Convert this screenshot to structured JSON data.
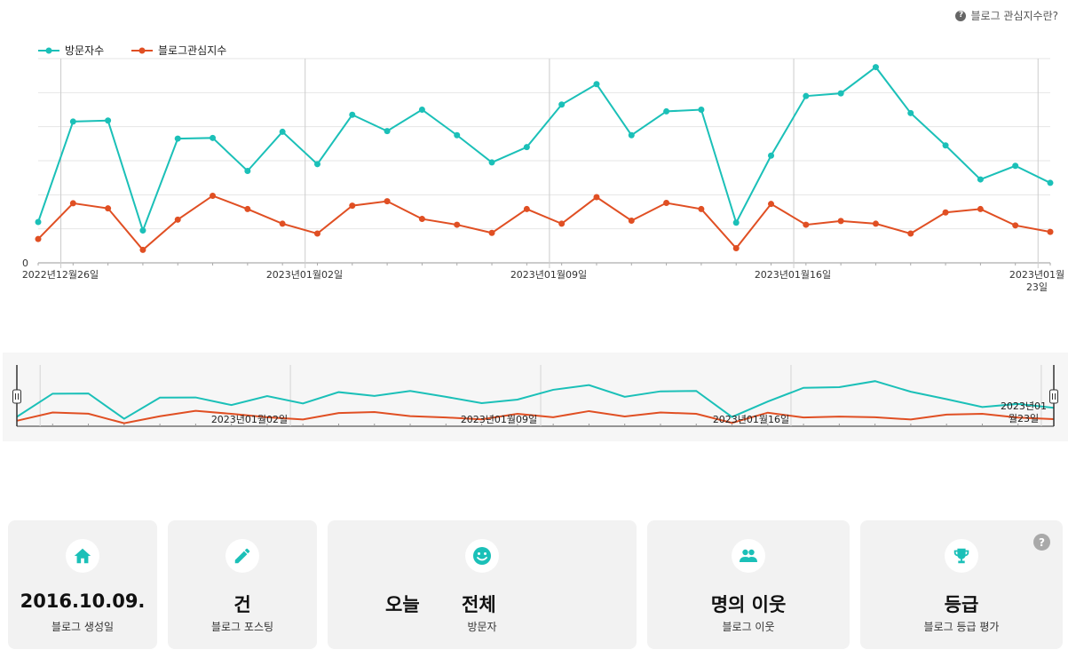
{
  "header": {
    "help_label": "블로그 관심지수란?",
    "help_icon": "question-icon"
  },
  "colors": {
    "visitors": "#1bc0b8",
    "interest": "#e04f23"
  },
  "chart_data": {
    "type": "line",
    "legend": [
      "방문자수",
      "블로그관심지수"
    ],
    "legend_position": "top-left",
    "y_tick_label": "0",
    "x_tick_labels": [
      "2022년12월26일",
      "2023년01월02일",
      "2023년01월09일",
      "2023년01월16일",
      "2023년01월\n23일"
    ],
    "grid": true,
    "series": [
      {
        "name": "방문자수",
        "values": [
          12,
          41.5,
          41.8,
          9.5,
          36.5,
          36.7,
          27,
          38.5,
          29,
          43.5,
          38.7,
          45,
          37.5,
          29.5,
          34,
          46.5,
          52.5,
          37.5,
          44.5,
          45,
          11.8,
          31.5,
          49,
          49.8,
          57.5,
          44,
          34.5,
          24.5,
          28.5,
          23.5
        ]
      },
      {
        "name": "블로그관심지수",
        "values": [
          7,
          17.5,
          16,
          3.8,
          12.7,
          19.7,
          15.8,
          11.5,
          8.6,
          16.8,
          18.1,
          12.9,
          11.2,
          8.8,
          15.8,
          11.5,
          19.3,
          12.4,
          17.6,
          15.8,
          4.3,
          17.3,
          11.2,
          12.3,
          11.5,
          8.6,
          14.8,
          15.8,
          11,
          9.1
        ]
      }
    ]
  },
  "navigator": {
    "tick_labels": [
      "2023년01월02일",
      "2023년01월09일",
      "2023년01월16일",
      "2023년01\n월23일"
    ]
  },
  "cards": [
    {
      "icon": "home-icon",
      "value": "2016.10.09.",
      "label": "블로그 생성일"
    },
    {
      "icon": "pencil-icon",
      "value": "건",
      "label": "블로그 포스팅"
    },
    {
      "icon": "smile-icon",
      "value_today": "오늘",
      "value_total": "전체",
      "label": "방문자"
    },
    {
      "icon": "people-icon",
      "value": "명의 이웃",
      "label": "블로그 이웃"
    },
    {
      "icon": "trophy-icon",
      "value": "등급",
      "label": "블로그 등급 평가",
      "help": "?"
    }
  ]
}
